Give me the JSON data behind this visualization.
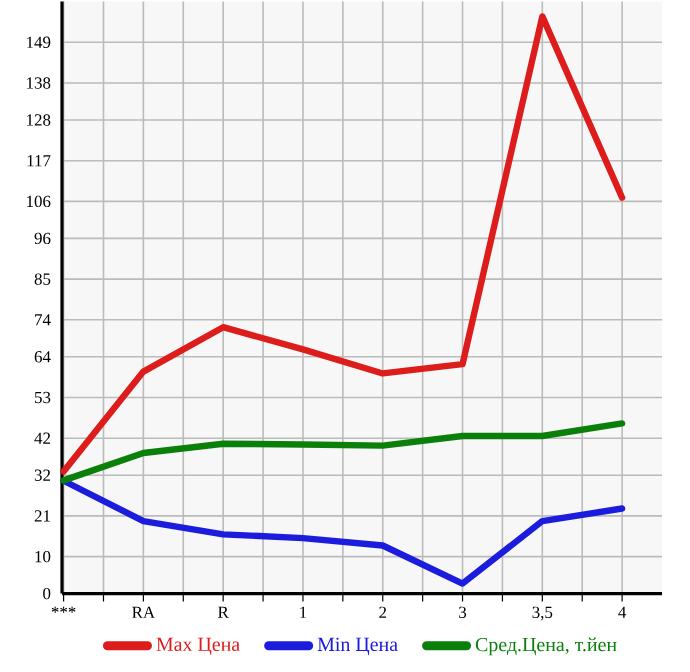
{
  "chart_data": {
    "type": "line",
    "categories": [
      "***",
      "RA",
      "R",
      "1",
      "2",
      "3",
      "3,5",
      "4"
    ],
    "series": [
      {
        "name": "Max Цена",
        "color": "#dd1c1c",
        "values": [
          33,
          60,
          72,
          66,
          59.5,
          62,
          156,
          107
        ]
      },
      {
        "name": "Min Цена",
        "color": "#1c1cdd",
        "values": [
          30.5,
          19.6,
          16,
          15,
          13,
          2.7,
          19.6,
          23
        ]
      },
      {
        "name": "Сред.Цена, т.йен",
        "color": "#0a800a",
        "values": [
          30.6,
          38,
          40.5,
          40.3,
          40,
          42.6,
          42.6,
          46
        ]
      }
    ],
    "ylim": [
      0,
      160
    ],
    "yticks": [
      0,
      10,
      21,
      32,
      42,
      53,
      64,
      74,
      85,
      96,
      106,
      117,
      128,
      138,
      149
    ],
    "grid": true,
    "legend": "bottom",
    "marker": "none",
    "line_style": "solid"
  }
}
